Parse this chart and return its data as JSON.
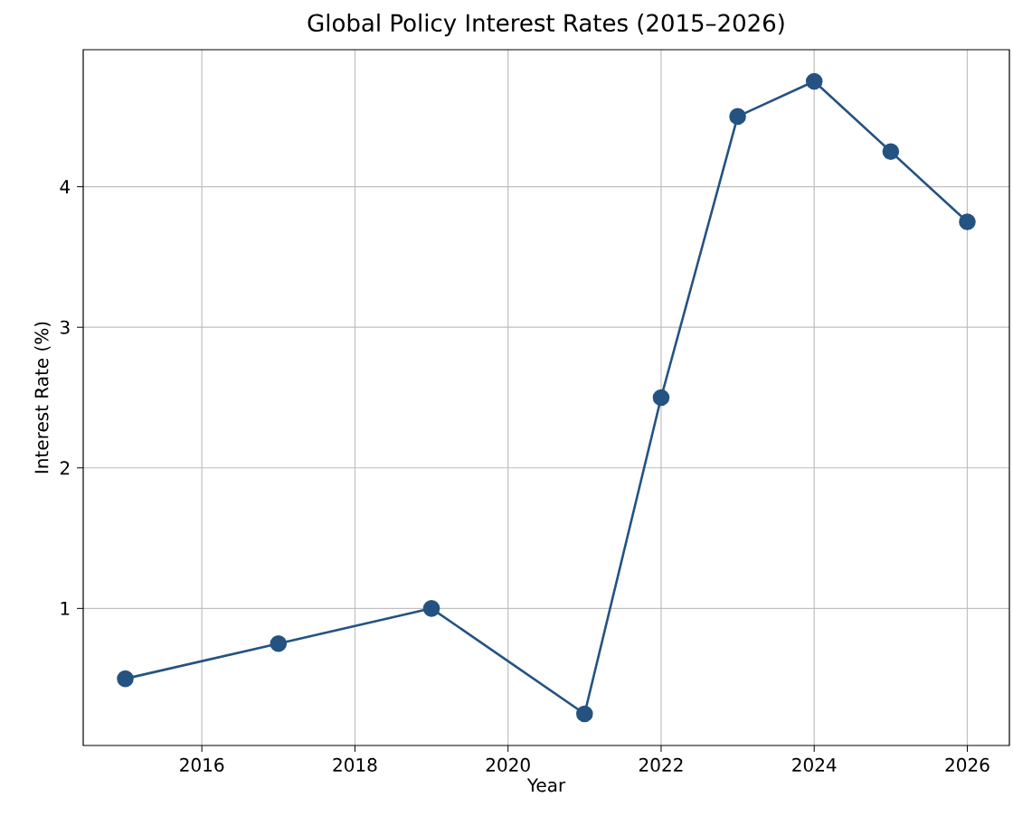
{
  "chart_data": {
    "type": "line",
    "title": "Global Policy Interest Rates (2015–2026)",
    "xlabel": "Year",
    "ylabel": "Interest Rate (%)",
    "x": [
      2015,
      2017,
      2019,
      2021,
      2022,
      2023,
      2024,
      2025,
      2026
    ],
    "values": [
      0.5,
      0.75,
      1.0,
      0.25,
      2.5,
      4.5,
      4.75,
      4.25,
      3.75
    ],
    "color": "#245382",
    "xlim": [
      2014.45,
      2026.55
    ],
    "ylim": [
      0.025,
      4.975
    ],
    "xticks": [
      2016,
      2018,
      2020,
      2022,
      2024,
      2026
    ],
    "yticks": [
      1,
      2,
      3,
      4
    ],
    "grid": true,
    "marker": "circle",
    "line_style": "solid"
  }
}
